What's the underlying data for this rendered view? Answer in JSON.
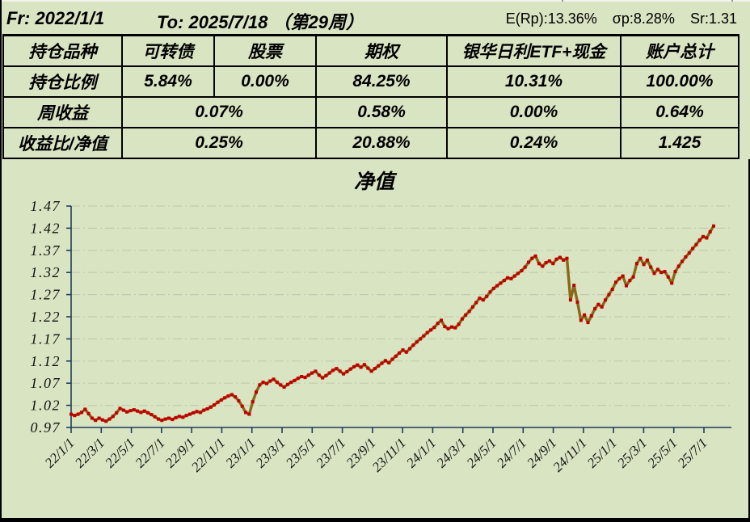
{
  "header": {
    "fr": "Fr:  2022/1/1",
    "to": "To:    2025/7/18 （第29周）",
    "stat_erp": "E(Rp):13.36%",
    "stat_sigma": "σp:8.28%",
    "stat_sr": "Sr:1.31"
  },
  "table": {
    "header_row": [
      "持仓品种",
      "可转债",
      "股票",
      "期权",
      "银华日利ETF+现金",
      "账户总计"
    ],
    "ratio_row": {
      "label": "持仓比例",
      "values": [
        "5.84%",
        "0.00%",
        "84.25%",
        "10.31%",
        "100.00%"
      ]
    },
    "week_return_row": {
      "label": "周收益",
      "merged": "0.07%",
      "values": [
        "0.58%",
        "0.00%",
        "0.64%"
      ]
    },
    "contrib_row": {
      "label": "收益比/净值",
      "merged": "0.25%",
      "values": [
        "20.88%",
        "0.24%",
        "1.425"
      ]
    }
  },
  "chart_data": {
    "type": "line",
    "title": "净值",
    "frequency": "weekly",
    "x_start": "2022/1/1",
    "x_end": "2025/7/18",
    "ylim": [
      0.97,
      1.47
    ],
    "y_ticks": [
      0.97,
      1.02,
      1.07,
      1.12,
      1.17,
      1.22,
      1.27,
      1.32,
      1.37,
      1.42,
      1.47
    ],
    "x_tick_labels": [
      "22/1/1",
      "22/3/1",
      "22/5/1",
      "22/7/1",
      "22/9/1",
      "22/11/1",
      "23/1/1",
      "23/3/1",
      "23/5/1",
      "23/7/1",
      "23/9/1",
      "23/11/1",
      "24/1/1",
      "24/3/1",
      "24/5/1",
      "24/7/1",
      "24/9/1",
      "24/11/1",
      "25/1/1",
      "25/3/1",
      "25/5/1",
      "25/7/1"
    ],
    "grid": "dash-dot horizontal",
    "legend": "none",
    "line_color": "#8a671a",
    "marker_color": "#c00000",
    "axis_color": "#1f3c5c",
    "series": [
      {
        "name": "净值",
        "values": [
          1.0,
          0.997,
          1.0,
          1.004,
          1.011,
          1.001,
          0.991,
          0.986,
          0.991,
          0.987,
          0.984,
          0.989,
          0.995,
          1.003,
          1.013,
          1.009,
          1.005,
          1.008,
          1.01,
          1.007,
          1.004,
          1.007,
          1.003,
          0.999,
          0.994,
          0.989,
          0.986,
          0.989,
          0.991,
          0.988,
          0.992,
          0.995,
          0.993,
          0.997,
          1.0,
          1.003,
          1.006,
          1.004,
          1.009,
          1.012,
          1.016,
          1.021,
          1.027,
          1.032,
          1.037,
          1.041,
          1.044,
          1.039,
          1.03,
          1.018,
          1.004,
          1.0,
          1.028,
          1.05,
          1.066,
          1.072,
          1.069,
          1.075,
          1.079,
          1.072,
          1.066,
          1.061,
          1.067,
          1.072,
          1.076,
          1.081,
          1.085,
          1.083,
          1.088,
          1.093,
          1.097,
          1.088,
          1.082,
          1.087,
          1.093,
          1.099,
          1.103,
          1.097,
          1.091,
          1.096,
          1.102,
          1.107,
          1.111,
          1.106,
          1.112,
          1.104,
          1.097,
          1.103,
          1.109,
          1.115,
          1.121,
          1.116,
          1.124,
          1.131,
          1.138,
          1.145,
          1.14,
          1.148,
          1.156,
          1.163,
          1.17,
          1.177,
          1.184,
          1.19,
          1.196,
          1.205,
          1.212,
          1.198,
          1.193,
          1.197,
          1.195,
          1.203,
          1.215,
          1.224,
          1.232,
          1.242,
          1.252,
          1.262,
          1.258,
          1.266,
          1.276,
          1.284,
          1.29,
          1.296,
          1.302,
          1.308,
          1.306,
          1.312,
          1.318,
          1.324,
          1.332,
          1.343,
          1.352,
          1.357,
          1.34,
          1.334,
          1.342,
          1.346,
          1.34,
          1.35,
          1.354,
          1.348,
          1.352,
          1.258,
          1.291,
          1.253,
          1.212,
          1.224,
          1.207,
          1.222,
          1.238,
          1.248,
          1.242,
          1.258,
          1.27,
          1.282,
          1.298,
          1.306,
          1.312,
          1.29,
          1.302,
          1.31,
          1.34,
          1.352,
          1.338,
          1.348,
          1.332,
          1.318,
          1.327,
          1.32,
          1.322,
          1.31,
          1.296,
          1.322,
          1.334,
          1.345,
          1.355,
          1.364,
          1.374,
          1.383,
          1.393,
          1.401,
          1.398,
          1.412,
          1.425
        ]
      }
    ]
  }
}
